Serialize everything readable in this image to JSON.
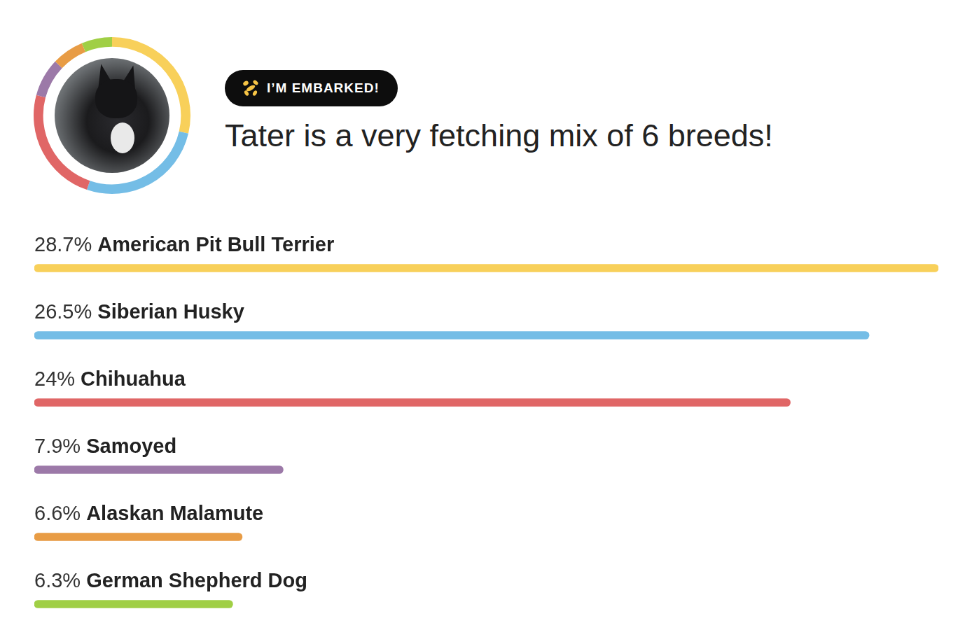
{
  "chart_data": {
    "type": "bar",
    "orientation": "horizontal",
    "title": "Tater is a very fetching mix of 6 breeds!",
    "annotations": [
      "I’M EMBARKED!"
    ],
    "categories": [
      "American Pit Bull Terrier",
      "Siberian Husky",
      "Chihuahua",
      "Samoyed",
      "Alaskan Malamute",
      "German Shepherd Dog"
    ],
    "values": [
      28.7,
      26.5,
      24,
      7.9,
      6.6,
      6.3
    ],
    "value_labels": [
      "28.7%",
      "26.5%",
      "24%",
      "7.9%",
      "6.6%",
      "6.3%"
    ],
    "colors": [
      "#f8d05a",
      "#74bde6",
      "#e06666",
      "#9c79a8",
      "#e89c45",
      "#a0cf45"
    ],
    "xlim": [
      0,
      28.7
    ],
    "data_labels": true,
    "tick_labels": false,
    "grid": false
  }
}
